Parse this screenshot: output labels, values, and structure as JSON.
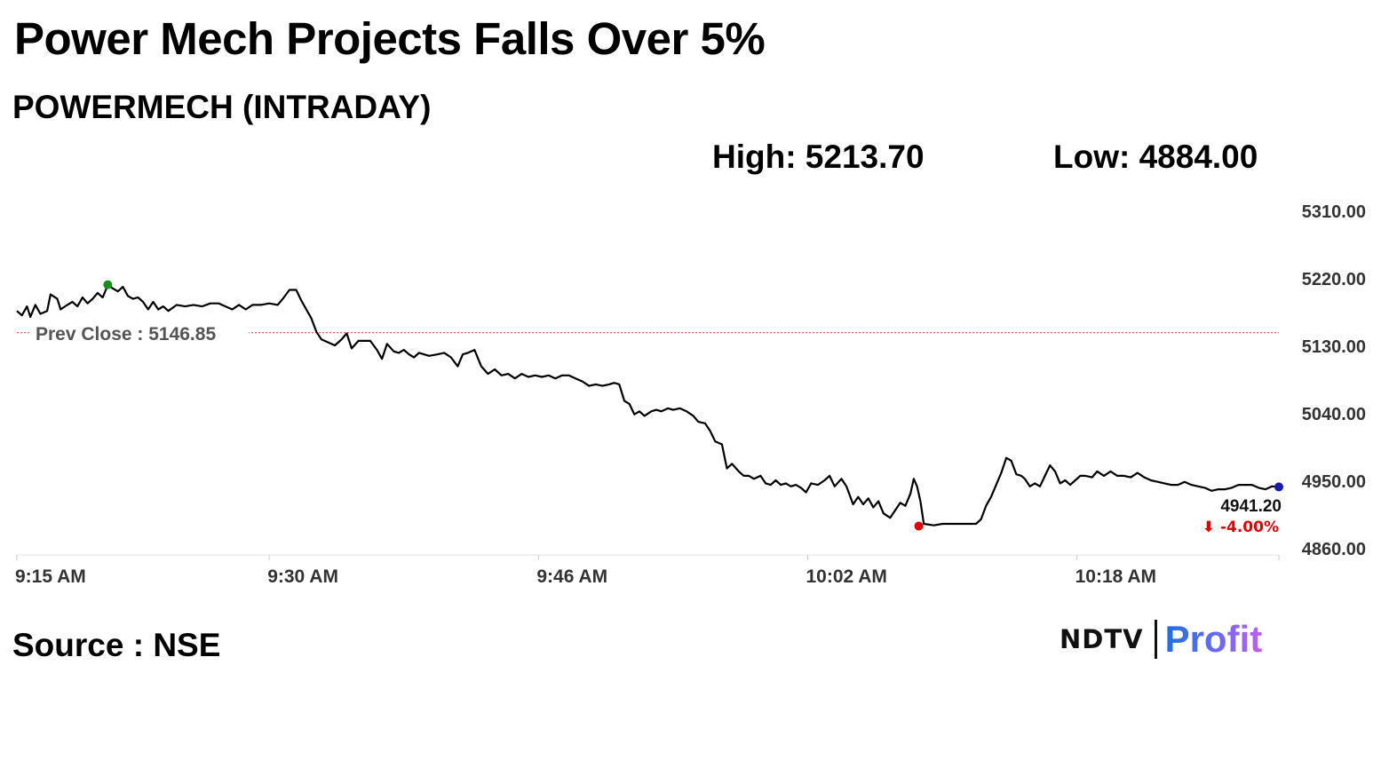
{
  "headline": "Power Mech Projects Falls Over 5%",
  "subtitle": "POWERMECH (INTRADAY)",
  "stats": {
    "high": "High: 5213.70",
    "low": "Low: 4884.00"
  },
  "source": "Source : NSE",
  "logo": {
    "ndtv": "NDTV",
    "profit": "Profit",
    "profit_color": "#5b6cf0"
  },
  "chart_data": {
    "type": "line",
    "xlabel": "",
    "ylabel": "",
    "x_ticks": [
      {
        "label": "9:15 AM",
        "minute": 0
      },
      {
        "label": "9:30 AM",
        "minute": 15
      },
      {
        "label": "9:46 AM",
        "minute": 31
      },
      {
        "label": "10:02 AM",
        "minute": 47
      },
      {
        "label": "10:18 AM",
        "minute": 63
      }
    ],
    "y_ticks": [
      "5310.00",
      "5220.00",
      "5130.00",
      "5040.00",
      "4950.00",
      "4860.00"
    ],
    "ylim": [
      4860,
      5310
    ],
    "xlim_minutes": [
      0,
      75
    ],
    "grid": false,
    "line_color": "#000000",
    "prev_close": {
      "label": "Prev Close : 5146.85",
      "value": 5146.85,
      "color": "#e53935"
    },
    "last_price": {
      "label": "4941.20",
      "change": "⬇ -4.00%",
      "change_color": "#e00000"
    },
    "markers": [
      {
        "name": "high-marker",
        "minute": 5.4,
        "value": 5211,
        "color": "#1a8f1a"
      },
      {
        "name": "low-marker",
        "minute": 53.6,
        "value": 4889,
        "color": "#e00000"
      },
      {
        "name": "last-marker",
        "minute": 75,
        "value": 4941.2,
        "color": "#1a1aa8"
      }
    ],
    "series": [
      {
        "values": [
          [
            0.0,
            5176
          ],
          [
            0.3,
            5170
          ],
          [
            0.6,
            5182
          ],
          [
            0.8,
            5168
          ],
          [
            1.1,
            5184
          ],
          [
            1.4,
            5172
          ],
          [
            1.8,
            5176
          ],
          [
            2.0,
            5198
          ],
          [
            2.4,
            5192
          ],
          [
            2.6,
            5178
          ],
          [
            3.0,
            5184
          ],
          [
            3.3,
            5188
          ],
          [
            3.6,
            5182
          ],
          [
            3.9,
            5194
          ],
          [
            4.2,
            5186
          ],
          [
            4.5,
            5192
          ],
          [
            4.8,
            5200
          ],
          [
            5.1,
            5194
          ],
          [
            5.4,
            5210
          ],
          [
            5.7,
            5206
          ],
          [
            6.0,
            5202
          ],
          [
            6.3,
            5208
          ],
          [
            6.6,
            5196
          ],
          [
            6.9,
            5192
          ],
          [
            7.2,
            5194
          ],
          [
            7.5,
            5188
          ],
          [
            7.8,
            5178
          ],
          [
            8.1,
            5188
          ],
          [
            8.4,
            5178
          ],
          [
            8.7,
            5182
          ],
          [
            9.0,
            5176
          ],
          [
            9.5,
            5184
          ],
          [
            10.0,
            5182
          ],
          [
            10.5,
            5184
          ],
          [
            11.0,
            5182
          ],
          [
            11.5,
            5186
          ],
          [
            12.0,
            5186
          ],
          [
            12.4,
            5182
          ],
          [
            12.8,
            5178
          ],
          [
            13.2,
            5184
          ],
          [
            13.6,
            5178
          ],
          [
            14.0,
            5184
          ],
          [
            14.5,
            5184
          ],
          [
            15.0,
            5186
          ],
          [
            15.5,
            5184
          ],
          [
            15.8,
            5192
          ],
          [
            16.2,
            5204
          ],
          [
            16.6,
            5204
          ],
          [
            16.9,
            5190
          ],
          [
            17.2,
            5178
          ],
          [
            17.5,
            5166
          ],
          [
            17.8,
            5148
          ],
          [
            18.1,
            5138
          ],
          [
            18.5,
            5134
          ],
          [
            18.9,
            5130
          ],
          [
            19.3,
            5138
          ],
          [
            19.6,
            5146
          ],
          [
            19.9,
            5126
          ],
          [
            20.3,
            5136
          ],
          [
            20.7,
            5136
          ],
          [
            21.0,
            5136
          ],
          [
            21.4,
            5124
          ],
          [
            21.7,
            5112
          ],
          [
            22.0,
            5132
          ],
          [
            22.4,
            5122
          ],
          [
            22.7,
            5120
          ],
          [
            23.0,
            5124
          ],
          [
            23.3,
            5118
          ],
          [
            23.6,
            5114
          ],
          [
            23.9,
            5120
          ],
          [
            24.5,
            5116
          ],
          [
            25.0,
            5118
          ],
          [
            25.4,
            5120
          ],
          [
            25.8,
            5114
          ],
          [
            26.2,
            5102
          ],
          [
            26.5,
            5118
          ],
          [
            26.8,
            5120
          ],
          [
            27.2,
            5124
          ],
          [
            27.6,
            5102
          ],
          [
            28.0,
            5092
          ],
          [
            28.4,
            5098
          ],
          [
            28.8,
            5090
          ],
          [
            29.2,
            5092
          ],
          [
            29.6,
            5086
          ],
          [
            30.0,
            5092
          ],
          [
            30.4,
            5088
          ],
          [
            30.8,
            5090
          ],
          [
            31.2,
            5088
          ],
          [
            31.6,
            5090
          ],
          [
            32.0,
            5086
          ],
          [
            32.4,
            5090
          ],
          [
            32.8,
            5090
          ],
          [
            33.2,
            5086
          ],
          [
            33.6,
            5082
          ],
          [
            34.0,
            5076
          ],
          [
            34.4,
            5078
          ],
          [
            34.8,
            5076
          ],
          [
            35.2,
            5078
          ],
          [
            35.5,
            5080
          ],
          [
            35.8,
            5078
          ],
          [
            36.1,
            5056
          ],
          [
            36.4,
            5052
          ],
          [
            36.7,
            5038
          ],
          [
            37.0,
            5042
          ],
          [
            37.3,
            5036
          ],
          [
            37.7,
            5042
          ],
          [
            38.0,
            5044
          ],
          [
            38.3,
            5042
          ],
          [
            38.7,
            5046
          ],
          [
            39.0,
            5044
          ],
          [
            39.4,
            5046
          ],
          [
            39.8,
            5042
          ],
          [
            40.2,
            5036
          ],
          [
            40.5,
            5028
          ],
          [
            40.9,
            5026
          ],
          [
            41.2,
            5016
          ],
          [
            41.5,
            5002
          ],
          [
            41.9,
            4998
          ],
          [
            42.2,
            4966
          ],
          [
            42.5,
            4972
          ],
          [
            42.9,
            4962
          ],
          [
            43.2,
            4956
          ],
          [
            43.5,
            4956
          ],
          [
            43.8,
            4952
          ],
          [
            44.2,
            4956
          ],
          [
            44.5,
            4946
          ],
          [
            44.8,
            4944
          ],
          [
            45.1,
            4950
          ],
          [
            45.4,
            4944
          ],
          [
            45.7,
            4946
          ],
          [
            46.0,
            4942
          ],
          [
            46.3,
            4944
          ],
          [
            46.6,
            4940
          ],
          [
            46.9,
            4934
          ],
          [
            47.2,
            4946
          ],
          [
            47.6,
            4944
          ],
          [
            48.0,
            4950
          ],
          [
            48.3,
            4956
          ],
          [
            48.6,
            4942
          ],
          [
            49.0,
            4952
          ],
          [
            49.3,
            4942
          ],
          [
            49.7,
            4918
          ],
          [
            50.0,
            4928
          ],
          [
            50.3,
            4918
          ],
          [
            50.6,
            4926
          ],
          [
            50.9,
            4914
          ],
          [
            51.2,
            4922
          ],
          [
            51.5,
            4906
          ],
          [
            51.9,
            4900
          ],
          [
            52.2,
            4910
          ],
          [
            52.5,
            4920
          ],
          [
            52.8,
            4916
          ],
          [
            53.1,
            4932
          ],
          [
            53.3,
            4952
          ],
          [
            53.5,
            4942
          ],
          [
            53.7,
            4922
          ],
          [
            53.9,
            4892
          ],
          [
            54.5,
            4890
          ],
          [
            55.0,
            4892
          ],
          [
            55.5,
            4892
          ],
          [
            56.0,
            4892
          ],
          [
            56.5,
            4892
          ],
          [
            57.0,
            4892
          ],
          [
            57.3,
            4898
          ],
          [
            57.6,
            4916
          ],
          [
            57.9,
            4928
          ],
          [
            58.2,
            4944
          ],
          [
            58.5,
            4960
          ],
          [
            58.8,
            4980
          ],
          [
            59.1,
            4976
          ],
          [
            59.4,
            4958
          ],
          [
            59.7,
            4956
          ],
          [
            59.9,
            4952
          ],
          [
            60.2,
            4942
          ],
          [
            60.5,
            4946
          ],
          [
            60.8,
            4942
          ],
          [
            61.1,
            4956
          ],
          [
            61.4,
            4970
          ],
          [
            61.7,
            4962
          ],
          [
            62.0,
            4946
          ],
          [
            62.3,
            4950
          ],
          [
            62.6,
            4944
          ],
          [
            62.9,
            4950
          ],
          [
            63.2,
            4956
          ],
          [
            63.5,
            4956
          ],
          [
            63.9,
            4954
          ],
          [
            64.2,
            4962
          ],
          [
            64.6,
            4956
          ],
          [
            65.0,
            4962
          ],
          [
            65.4,
            4956
          ],
          [
            65.8,
            4956
          ],
          [
            66.2,
            4954
          ],
          [
            66.6,
            4960
          ],
          [
            67.0,
            4954
          ],
          [
            67.4,
            4950
          ],
          [
            67.8,
            4948
          ],
          [
            68.2,
            4946
          ],
          [
            68.6,
            4944
          ],
          [
            69.0,
            4944
          ],
          [
            69.4,
            4948
          ],
          [
            69.8,
            4944
          ],
          [
            70.2,
            4942
          ],
          [
            70.6,
            4940
          ],
          [
            71.0,
            4936
          ],
          [
            71.4,
            4938
          ],
          [
            71.8,
            4938
          ],
          [
            72.2,
            4940
          ],
          [
            72.6,
            4944
          ],
          [
            73.0,
            4944
          ],
          [
            73.4,
            4944
          ],
          [
            73.8,
            4940
          ],
          [
            74.2,
            4938
          ],
          [
            74.6,
            4942
          ],
          [
            75.0,
            4941.2
          ]
        ]
      }
    ]
  }
}
